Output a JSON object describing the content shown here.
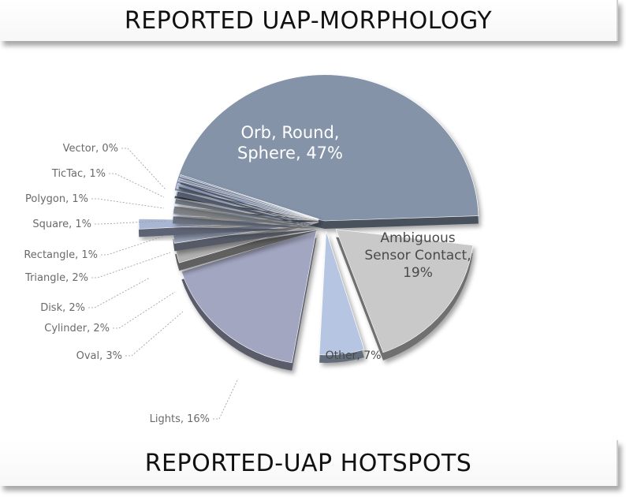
{
  "header": {
    "title": "REPORTED UAP-MORPHOLOGY"
  },
  "footer": {
    "title": "REPORTED-UAP HOTSPOTS"
  },
  "chart_data": {
    "type": "pie",
    "title": "",
    "slices": [
      {
        "label": "Orb, Round, Sphere",
        "value": 47,
        "display": "47%",
        "color": "#8593a9"
      },
      {
        "label": "Ambiguous Sensor Contact",
        "value": 19,
        "display": "19%",
        "color": "#c9c9c9"
      },
      {
        "label": "Other",
        "value": 7,
        "display": "7%",
        "color": "#b6c6e2"
      },
      {
        "label": "Lights",
        "value": 16,
        "display": "16%",
        "color": "#a3a6c1"
      },
      {
        "label": "Oval",
        "value": 3,
        "display": "3%",
        "color": "#b1b1b1"
      },
      {
        "label": "Cylinder",
        "value": 2,
        "display": "2%",
        "color": "#9aa4b9"
      },
      {
        "label": "Disk",
        "value": 2,
        "display": "2%",
        "color": "#a9b6d3"
      },
      {
        "label": "Triangle",
        "value": 2,
        "display": "2%",
        "color": "#c2cde4"
      },
      {
        "label": "Rectangle",
        "value": 1,
        "display": "1%",
        "color": "#e2e6ee"
      },
      {
        "label": "Square",
        "value": 1,
        "display": "1%",
        "color": "#c8d3ea"
      },
      {
        "label": "Polygon",
        "value": 1,
        "display": "1%",
        "color": "#9fafd0"
      },
      {
        "label": "TicTac",
        "value": 1,
        "display": "1%",
        "color": "#8e9bb8"
      },
      {
        "label": "Vector",
        "value": 0,
        "display": "0%",
        "color": "#7f8ba6"
      }
    ],
    "legend": "none"
  }
}
